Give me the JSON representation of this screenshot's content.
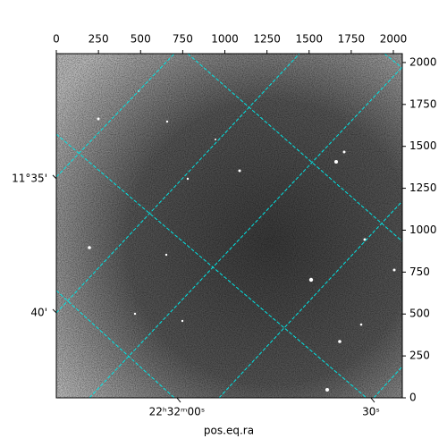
{
  "chart_data": {
    "type": "image",
    "xlim": [
      0,
      2053
    ],
    "ylim": [
      0,
      2053
    ],
    "xticks": [
      0,
      250,
      500,
      750,
      1000,
      1250,
      1500,
      1750,
      2000
    ],
    "yticks": [
      0,
      250,
      500,
      750,
      1000,
      1250,
      1500,
      1750,
      2000
    ],
    "ra_ticks": [
      {
        "value": 716,
        "label": "22ʰ32ᵐ00ˢ"
      },
      {
        "value": 1867,
        "label": "30ˢ"
      }
    ],
    "dec_ticks": [
      {
        "value": 1307,
        "label": "11°35'"
      },
      {
        "value": 507,
        "label": "40'"
      }
    ],
    "xlabel": "pos.eq.ra"
  }
}
